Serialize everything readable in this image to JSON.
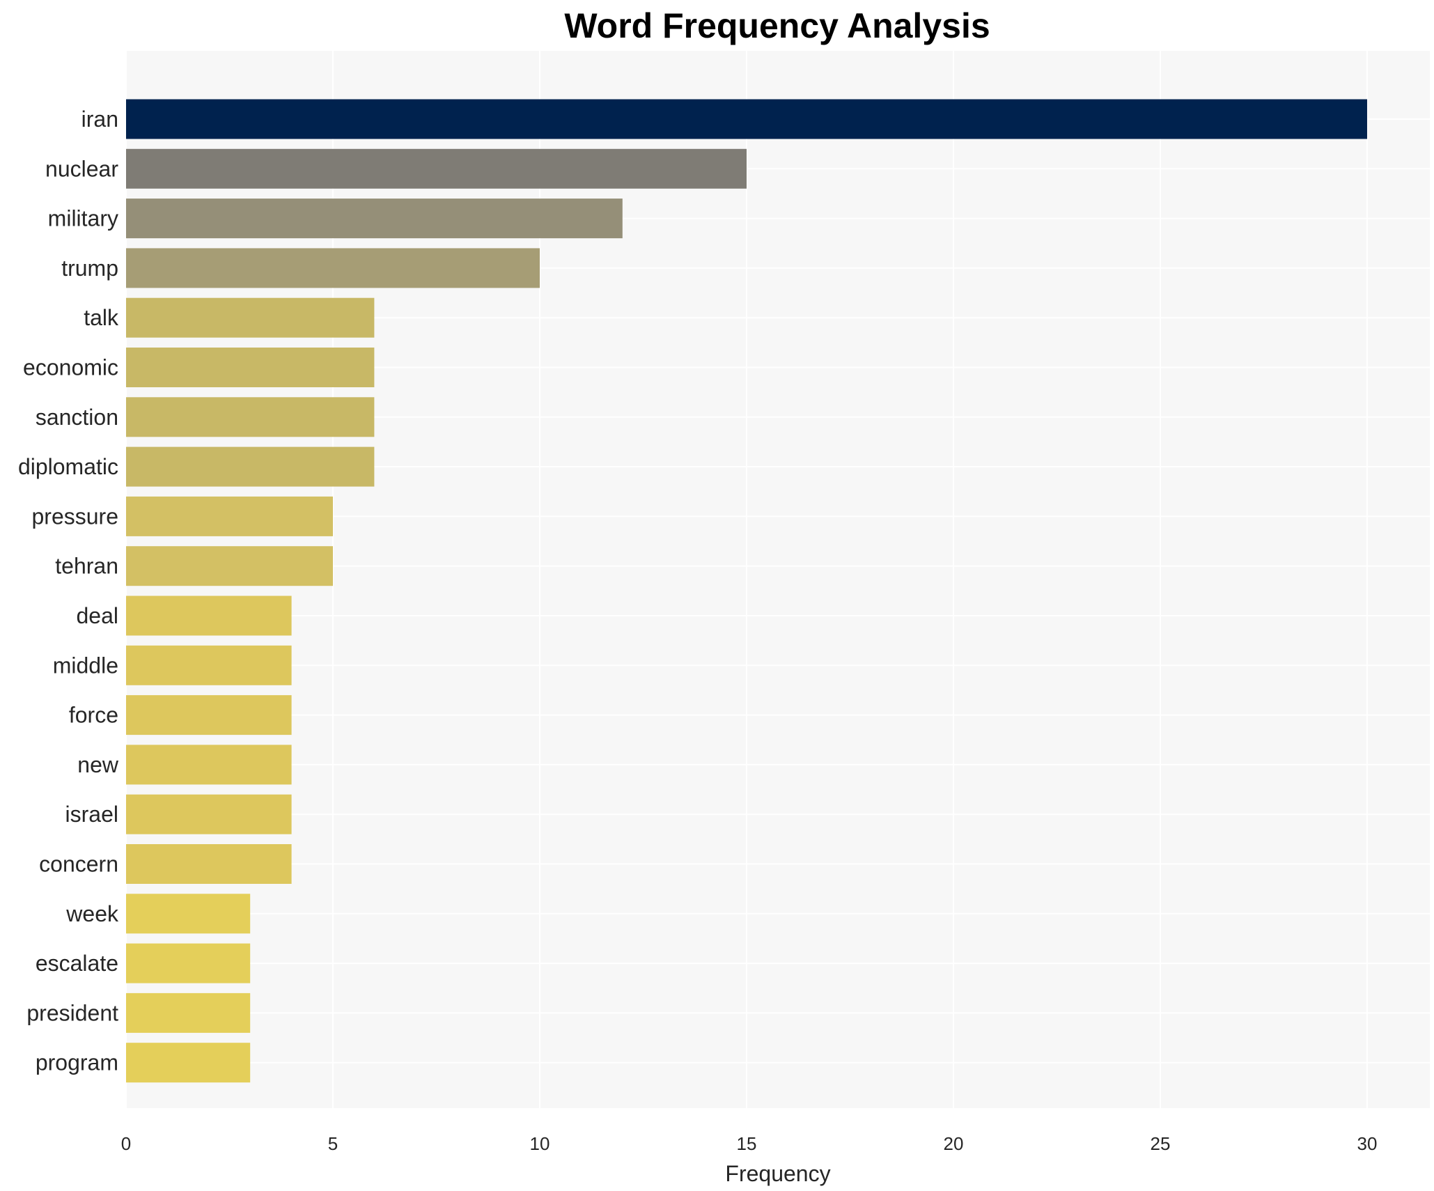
{
  "chart_data": {
    "type": "bar",
    "orientation": "horizontal",
    "title": "Word Frequency Analysis",
    "xlabel": "Frequency",
    "ylabel": "",
    "categories": [
      "iran",
      "nuclear",
      "military",
      "trump",
      "talk",
      "economic",
      "sanction",
      "diplomatic",
      "pressure",
      "tehran",
      "deal",
      "middle",
      "force",
      "new",
      "israel",
      "concern",
      "week",
      "escalate",
      "president",
      "program"
    ],
    "values": [
      30,
      15,
      12,
      10,
      6,
      6,
      6,
      6,
      5,
      5,
      4,
      4,
      4,
      4,
      4,
      4,
      3,
      3,
      3,
      3
    ],
    "colors": [
      "#00224e",
      "#7f7c75",
      "#958f78",
      "#a69d75",
      "#c8b866",
      "#c8b866",
      "#c8b866",
      "#c8b866",
      "#d3c064",
      "#d3c064",
      "#ddc75d",
      "#ddc75d",
      "#ddc75d",
      "#ddc75d",
      "#ddc75d",
      "#ddc75d",
      "#e4cf5a",
      "#e4cf5a",
      "#e4cf5a",
      "#e4cf5a"
    ],
    "xlim": [
      0,
      31.5
    ],
    "xticks": [
      0,
      5,
      10,
      15,
      20,
      25,
      30
    ],
    "grid": true,
    "background": "#f7f7f7",
    "gridcolor": "#ffffff"
  }
}
